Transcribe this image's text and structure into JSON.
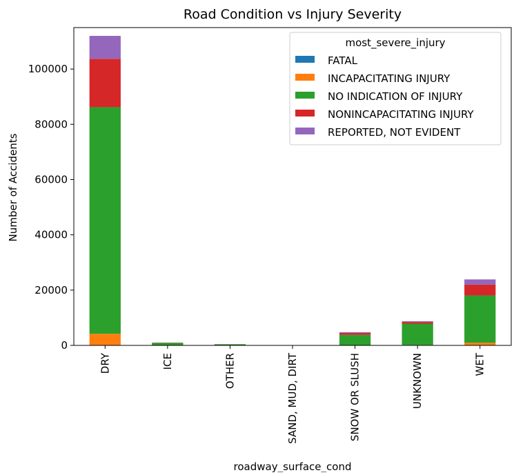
{
  "chart_data": {
    "type": "bar",
    "stacked": true,
    "title": "Road Condition vs Injury Severity",
    "xlabel": "roadway_surface_cond",
    "ylabel": "Number of Accidents",
    "ylim": [
      0,
      115000
    ],
    "yticks": [
      0,
      20000,
      40000,
      60000,
      80000,
      100000
    ],
    "ytick_labels": [
      "0",
      "20000",
      "40000",
      "60000",
      "80000",
      "100000"
    ],
    "categories": [
      "DRY",
      "ICE",
      "OTHER",
      "SAND, MUD, DIRT",
      "SNOW OR SLUSH",
      "UNKNOWN",
      "WET"
    ],
    "legend": {
      "title": "most_severe_injury",
      "position": "upper right"
    },
    "grid": false,
    "series": [
      {
        "name": "FATAL",
        "color": "#1f77b4",
        "values": [
          100,
          0,
          0,
          0,
          5,
          10,
          20
        ]
      },
      {
        "name": "INCAPACITATING INJURY",
        "color": "#ff7f0e",
        "values": [
          4100,
          20,
          10,
          2,
          80,
          150,
          950
        ]
      },
      {
        "name": "NO INDICATION OF INJURY",
        "color": "#2ca02c",
        "values": [
          82000,
          850,
          380,
          50,
          3700,
          7700,
          17100
        ]
      },
      {
        "name": "NONINCAPACITATING INJURY",
        "color": "#d62728",
        "values": [
          17500,
          100,
          40,
          5,
          700,
          600,
          3900
        ]
      },
      {
        "name": "REPORTED, NOT EVIDENT",
        "color": "#9467bd",
        "values": [
          8300,
          50,
          20,
          3,
          300,
          300,
          1900
        ]
      }
    ]
  }
}
